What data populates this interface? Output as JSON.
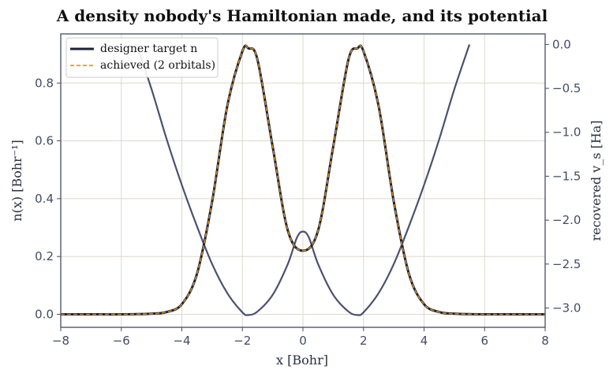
{
  "chart_data": {
    "type": "line",
    "title": "A density nobody's Hamiltonian made, and its potential",
    "xlabel": "x  [Bohr]",
    "ylabel_left": "n(x)  [Bohr⁻¹]",
    "ylabel_right": "recovered v_s  [Ha]",
    "xlim": [
      -8,
      8
    ],
    "ylim_left": [
      -0.045,
      0.97
    ],
    "ylim_right": [
      -3.22,
      0.12
    ],
    "x_ticks": [
      "−8",
      "−6",
      "−4",
      "−2",
      "0",
      "2",
      "4",
      "6",
      "8"
    ],
    "y_left_ticks": [
      "0.0",
      "0.2",
      "0.4",
      "0.6",
      "0.8"
    ],
    "y_right_ticks": [
      "0.0",
      "−0.5",
      "−1.0",
      "−1.5",
      "−2.0",
      "−2.5",
      "−3.0"
    ],
    "grid": true,
    "legend_position": "top-left",
    "colors": {
      "target": "#1b2238",
      "achieved": "#d48a1b",
      "potential": "#4a5170",
      "grid": "#ddd8cc",
      "axes": "#444c63"
    },
    "series": [
      {
        "name": "designer target n",
        "axis": "left",
        "x": [
          -8,
          -7,
          -6,
          -5,
          -4.5,
          -4,
          -3.5,
          -3,
          -2.5,
          -2,
          -1.8,
          -1.5,
          -1,
          -0.5,
          0,
          0.5,
          1,
          1.5,
          1.8,
          2,
          2.5,
          3,
          3.5,
          4,
          4.5,
          5,
          6,
          7,
          8
        ],
        "y": [
          0,
          0,
          0,
          0.002,
          0.008,
          0.035,
          0.14,
          0.39,
          0.72,
          0.91,
          0.92,
          0.88,
          0.58,
          0.29,
          0.22,
          0.29,
          0.58,
          0.88,
          0.92,
          0.91,
          0.72,
          0.39,
          0.14,
          0.035,
          0.008,
          0.002,
          0,
          0,
          0
        ]
      },
      {
        "name": "achieved (2 orbitals)",
        "axis": "left",
        "x": [
          -8,
          -7,
          -6,
          -5,
          -4.5,
          -4,
          -3.5,
          -3,
          -2.5,
          -2,
          -1.8,
          -1.5,
          -1,
          -0.5,
          0,
          0.5,
          1,
          1.5,
          1.8,
          2,
          2.5,
          3,
          3.5,
          4,
          4.5,
          5,
          6,
          7,
          8
        ],
        "y": [
          0,
          0,
          0,
          0.002,
          0.008,
          0.035,
          0.14,
          0.39,
          0.72,
          0.91,
          0.92,
          0.88,
          0.58,
          0.29,
          0.22,
          0.29,
          0.58,
          0.88,
          0.92,
          0.91,
          0.72,
          0.39,
          0.14,
          0.035,
          0.008,
          0.002,
          0,
          0,
          0
        ]
      },
      {
        "name": "recovered v_s",
        "axis": "right",
        "x": [
          -5.5,
          -5,
          -4.5,
          -4,
          -3.5,
          -3,
          -2.5,
          -2,
          -1.8,
          -1.5,
          -1,
          -0.5,
          -0.2,
          0,
          0.2,
          0.5,
          1,
          1.5,
          1.8,
          2,
          2.5,
          3,
          3.5,
          4,
          4.5,
          5,
          5.5
        ],
        "y": [
          0,
          -0.51,
          -1.08,
          -1.6,
          -2.07,
          -2.5,
          -2.83,
          -3.05,
          -3.08,
          -3.04,
          -2.85,
          -2.5,
          -2.2,
          -2.13,
          -2.2,
          -2.5,
          -2.85,
          -3.04,
          -3.08,
          -3.05,
          -2.83,
          -2.5,
          -2.07,
          -1.6,
          -1.08,
          -0.51,
          0
        ]
      }
    ]
  }
}
